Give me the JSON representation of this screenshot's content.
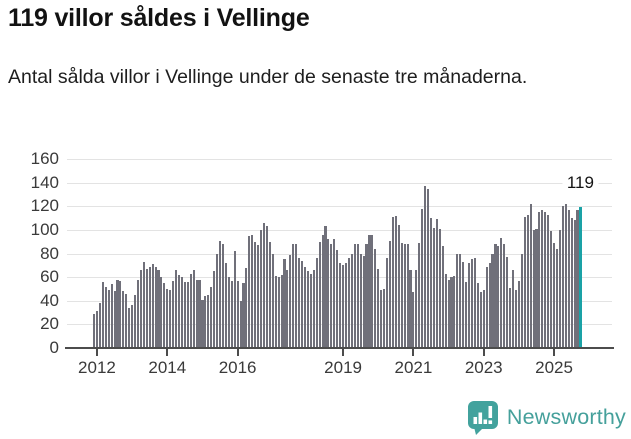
{
  "title": "119 villor såldes i Vellinge",
  "subtitle": "Antal sålda villor i Vellinge under de senaste tre månaderna.",
  "annotation": {
    "latest_value_label": "119"
  },
  "branding": {
    "name": "Newsworthy",
    "icon": "bar-chart-speech-bubble-icon",
    "color": "#42a29d"
  },
  "colors": {
    "bar": "#70707a",
    "highlight_bar": "#1aa2a6",
    "gridline": "#e3e3e3",
    "axis": "#4c4c4c",
    "tick_label": "#3a3a3a",
    "title_text": "#121212"
  },
  "chart_data": {
    "type": "bar",
    "title": "119 villor såldes i Vellinge",
    "subtitle": "Antal sålda villor i Vellinge under de senaste tre månaderna.",
    "ylabel": "",
    "xlabel": "",
    "ylim": [
      0,
      160
    ],
    "yticks": [
      0,
      20,
      40,
      60,
      80,
      100,
      120,
      140,
      160
    ],
    "grid": true,
    "legend": false,
    "frequency": "monthly, rolling 3-month total",
    "xticks": [
      {
        "label": "2012",
        "month_index": 1
      },
      {
        "label": "2014",
        "month_index": 25
      },
      {
        "label": "2016",
        "month_index": 49
      },
      {
        "label": "2019",
        "month_index": 85
      },
      {
        "label": "2021",
        "month_index": 109
      },
      {
        "label": "2023",
        "month_index": 133
      },
      {
        "label": "2025",
        "month_index": 157
      }
    ],
    "values": [
      29,
      31,
      38,
      56,
      52,
      49,
      54,
      48,
      58,
      57,
      48,
      46,
      34,
      36,
      45,
      58,
      66,
      73,
      67,
      69,
      71,
      69,
      66,
      60,
      55,
      50,
      49,
      57,
      66,
      62,
      60,
      56,
      56,
      63,
      66,
      58,
      58,
      41,
      44,
      45,
      52,
      65,
      80,
      91,
      88,
      72,
      60,
      57,
      82,
      57,
      40,
      55,
      68,
      95,
      96,
      90,
      87,
      100,
      106,
      103,
      90,
      80,
      61,
      60,
      62,
      75,
      66,
      79,
      88,
      88,
      76,
      74,
      69,
      65,
      63,
      66,
      76,
      90,
      96,
      103,
      92,
      88,
      92,
      83,
      72,
      70,
      72,
      76,
      80,
      88,
      88,
      80,
      78,
      88,
      96,
      96,
      84,
      67,
      49,
      50,
      76,
      91,
      111,
      112,
      104,
      89,
      88,
      88,
      66,
      47,
      66,
      89,
      118,
      137,
      135,
      110,
      102,
      109,
      101,
      86,
      63,
      58,
      60,
      61,
      80,
      80,
      73,
      56,
      72,
      75,
      76,
      55,
      47,
      49,
      69,
      72,
      80,
      88,
      86,
      93,
      88,
      77,
      51,
      66,
      49,
      57,
      80,
      111,
      113,
      122,
      100,
      101,
      115,
      117,
      115,
      113,
      99,
      89,
      84,
      100,
      120,
      122,
      117,
      110,
      108,
      117,
      119
    ],
    "highlight_last_bar": true,
    "last_value": 119,
    "annotation_text": "119"
  }
}
